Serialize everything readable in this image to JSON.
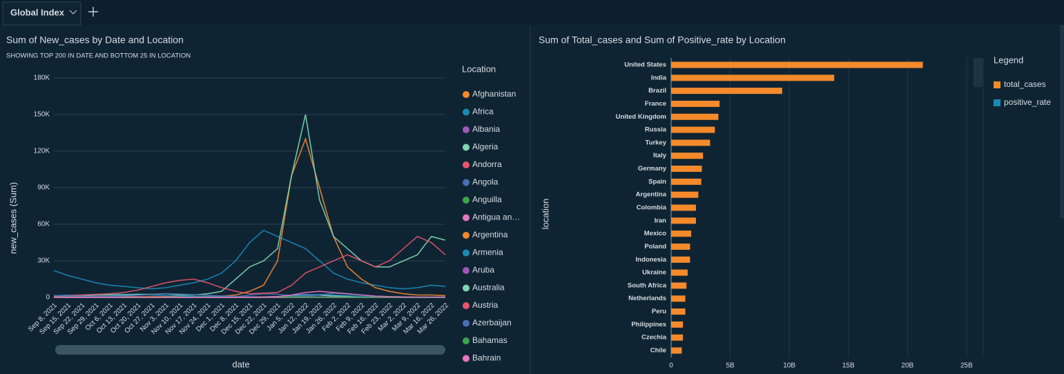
{
  "tab": {
    "title": "Global Index"
  },
  "chart_data": [
    {
      "type": "line",
      "title": "Sum of New_cases by Date and Location",
      "subtitle": "SHOWING TOP 200 IN DATE AND BOTTOM 25 IN LOCATION",
      "x_label": "date",
      "y_label": "new_cases (Sum)",
      "legend_title": "Location",
      "categories": [
        "Sep 8, 2021",
        "Sep 15, 2021",
        "Sep 22, 2021",
        "Sep 29, 2021",
        "Oct 6, 2021",
        "Oct 13, 2021",
        "Oct 20, 2021",
        "Oct 27, 2021",
        "Nov 3, 2021",
        "Nov 10, 2021",
        "Nov 17, 2021",
        "Nov 24, 2021",
        "Dec 1, 2021",
        "Dec 8, 2021",
        "Dec 15, 2021",
        "Dec 22, 2021",
        "Dec 29, 2021",
        "Jan 5, 2022",
        "Jan 12, 2022",
        "Jan 19, 2022",
        "Jan 26, 2022",
        "Feb 2, 2022",
        "Feb 9, 2022",
        "Feb 16, 2022",
        "Feb 23, 2022",
        "Mar 2, 2022",
        "Mar 9, 2022",
        "Mar 16, 2022",
        "Mar 26, 2022"
      ],
      "ylim": [
        0,
        180000
      ],
      "yticks": [
        0,
        {
          "value": 30000,
          "label": "30K"
        },
        {
          "value": 60000,
          "label": "60K"
        },
        {
          "value": 90000,
          "label": "90K"
        },
        {
          "value": 120000,
          "label": "120K"
        },
        {
          "value": 150000,
          "label": "150K"
        },
        {
          "value": 180000,
          "label": "180K"
        }
      ],
      "grid": true,
      "series": [
        {
          "name": "Afghanistan",
          "color": "#f58a2b",
          "values": [
            100,
            80,
            60,
            50,
            40,
            40,
            40,
            50,
            50,
            60,
            60,
            70,
            80,
            60,
            50,
            40,
            60,
            100,
            200,
            300,
            400,
            500,
            400,
            300,
            200,
            100,
            80,
            60,
            50
          ]
        },
        {
          "name": "Africa",
          "color": "#1a8bb5",
          "values": [
            22000,
            18000,
            15000,
            12000,
            10000,
            9000,
            8000,
            7000,
            8000,
            10000,
            12000,
            15000,
            20000,
            30000,
            45000,
            55000,
            50000,
            45000,
            40000,
            30000,
            20000,
            15000,
            12000,
            10000,
            8000,
            7000,
            8000,
            10000,
            9000
          ]
        },
        {
          "name": "Albania",
          "color": "#9b59b6",
          "values": [
            800,
            900,
            900,
            800,
            700,
            600,
            500,
            400,
            400,
            400,
            500,
            500,
            400,
            300,
            300,
            300,
            500,
            1500,
            2500,
            2000,
            1500,
            1000,
            600,
            400,
            300,
            200,
            150,
            100,
            100
          ]
        },
        {
          "name": "Algeria",
          "color": "#7fd6b4",
          "values": [
            300,
            250,
            200,
            150,
            120,
            100,
            100,
            100,
            100,
            100,
            120,
            150,
            200,
            300,
            350,
            400,
            600,
            1500,
            2000,
            1800,
            1200,
            800,
            400,
            200,
            150,
            100,
            80,
            60,
            50
          ]
        },
        {
          "name": "Andorra",
          "color": "#e8546c",
          "values": [
            10,
            10,
            10,
            10,
            10,
            10,
            10,
            20,
            30,
            40,
            60,
            100,
            150,
            200,
            300,
            400,
            600,
            500,
            400,
            300,
            200,
            100,
            80,
            50,
            40,
            30,
            30,
            20,
            20
          ]
        },
        {
          "name": "Angola",
          "color": "#4a6fb5",
          "values": [
            800,
            600,
            500,
            400,
            300,
            200,
            100,
            80,
            60,
            50,
            50,
            60,
            100,
            500,
            2000,
            3000,
            2500,
            1500,
            800,
            400,
            200,
            100,
            80,
            60,
            50,
            50,
            40,
            40,
            40
          ]
        },
        {
          "name": "Anguilla",
          "color": "#3fa34d",
          "values": [
            5,
            10,
            20,
            30,
            20,
            10,
            5,
            5,
            5,
            5,
            5,
            5,
            5,
            5,
            5,
            5,
            10,
            20,
            20,
            10,
            5,
            5,
            5,
            5,
            5,
            5,
            5,
            5,
            5
          ]
        },
        {
          "name": "Antigua an…",
          "color": "#e377c2",
          "values": [
            100,
            80,
            60,
            40,
            30,
            20,
            10,
            10,
            10,
            10,
            10,
            10,
            10,
            10,
            20,
            40,
            80,
            100,
            80,
            60,
            40,
            30,
            20,
            20,
            10,
            10,
            10,
            10,
            10
          ]
        },
        {
          "name": "Argentina",
          "color": "#f58a2b",
          "values": [
            500,
            500,
            500,
            400,
            400,
            400,
            400,
            500,
            500,
            500,
            500,
            800,
            1000,
            2000,
            5000,
            10000,
            30000,
            100000,
            130000,
            90000,
            50000,
            25000,
            15000,
            8000,
            5000,
            3000,
            2000,
            2000,
            1500
          ]
        },
        {
          "name": "Armenia",
          "color": "#1a8bb5",
          "values": [
            1500,
            1800,
            2000,
            2200,
            2500,
            2500,
            2500,
            2000,
            1500,
            1200,
            900,
            700,
            500,
            400,
            300,
            200,
            300,
            800,
            2000,
            2500,
            2000,
            1500,
            800,
            400,
            200,
            150,
            100,
            80,
            60
          ]
        },
        {
          "name": "Aruba",
          "color": "#9b59b6",
          "values": [
            50,
            40,
            30,
            30,
            30,
            30,
            40,
            50,
            60,
            60,
            50,
            50,
            60,
            80,
            150,
            300,
            500,
            400,
            300,
            200,
            100,
            60,
            40,
            30,
            20,
            20,
            20,
            20,
            20
          ]
        },
        {
          "name": "Australia",
          "color": "#7fd6b4",
          "values": [
            1000,
            1500,
            1500,
            2000,
            2000,
            2000,
            2500,
            2500,
            3000,
            2000,
            2000,
            3000,
            5000,
            15000,
            25000,
            30000,
            40000,
            100000,
            150000,
            80000,
            50000,
            40000,
            30000,
            25000,
            25000,
            30000,
            35000,
            50000,
            47000
          ]
        },
        {
          "name": "Austria",
          "color": "#e8546c",
          "values": [
            1000,
            1500,
            2000,
            2500,
            3000,
            4000,
            6000,
            9000,
            12000,
            14000,
            15000,
            12000,
            8000,
            5000,
            3000,
            3500,
            4000,
            10000,
            20000,
            25000,
            30000,
            35000,
            30000,
            25000,
            30000,
            40000,
            50000,
            45000,
            35000
          ]
        },
        {
          "name": "Azerbaijan",
          "color": "#4a6fb5",
          "values": [
            1500,
            1200,
            1000,
            800,
            900,
            1200,
            1800,
            2500,
            3000,
            2800,
            2200,
            1800,
            1200,
            800,
            500,
            400,
            400,
            600,
            1000,
            2000,
            3500,
            3000,
            2000,
            1000,
            600,
            400,
            300,
            200,
            200
          ]
        },
        {
          "name": "Bahamas",
          "color": "#3fa34d",
          "values": [
            300,
            200,
            150,
            100,
            80,
            50,
            40,
            30,
            30,
            30,
            30,
            30,
            40,
            60,
            100,
            300,
            500,
            400,
            200,
            150,
            100,
            80,
            60,
            50,
            40,
            30,
            30,
            30,
            30
          ]
        },
        {
          "name": "Bahrain",
          "color": "#e377c2",
          "values": [
            100,
            80,
            60,
            50,
            40,
            40,
            40,
            40,
            40,
            40,
            40,
            50,
            60,
            80,
            100,
            300,
            600,
            2000,
            4000,
            5000,
            4000,
            3000,
            2000,
            1000,
            600,
            400,
            300,
            200,
            200
          ]
        }
      ]
    },
    {
      "type": "hbar",
      "title": "Sum of Total_cases and Sum of Positive_rate by Location",
      "y_label": "location",
      "legend_title": "Legend",
      "categories": [
        "United States",
        "India",
        "Brazil",
        "France",
        "United Kingdom",
        "Russia",
        "Turkey",
        "Italy",
        "Germany",
        "Spain",
        "Argentina",
        "Colombia",
        "Iran",
        "Mexico",
        "Poland",
        "Indonesia",
        "Ukraine",
        "South Africa",
        "Netherlands",
        "Peru",
        "Philippines",
        "Czechia",
        "Chile"
      ],
      "xlim": [
        0,
        26000000000
      ],
      "xticks": [
        0,
        {
          "value": 5000000000,
          "label": "5B"
        },
        {
          "value": 10000000000,
          "label": "10B"
        },
        {
          "value": 15000000000,
          "label": "15B"
        },
        {
          "value": 20000000000,
          "label": "20B"
        },
        {
          "value": 25000000000,
          "label": "25B"
        }
      ],
      "grid": true,
      "series": [
        {
          "name": "total_cases",
          "color": "#f58a2b",
          "values": [
            21300000000,
            13800000000,
            9400000000,
            4100000000,
            4000000000,
            3700000000,
            3300000000,
            2700000000,
            2600000000,
            2550000000,
            2300000000,
            2100000000,
            2100000000,
            1700000000,
            1600000000,
            1600000000,
            1400000000,
            1300000000,
            1200000000,
            1200000000,
            1000000000,
            1000000000,
            900000000
          ]
        }
      ],
      "legend_only": [
        {
          "name": "positive_rate",
          "color": "#1a8bb5"
        }
      ]
    }
  ]
}
